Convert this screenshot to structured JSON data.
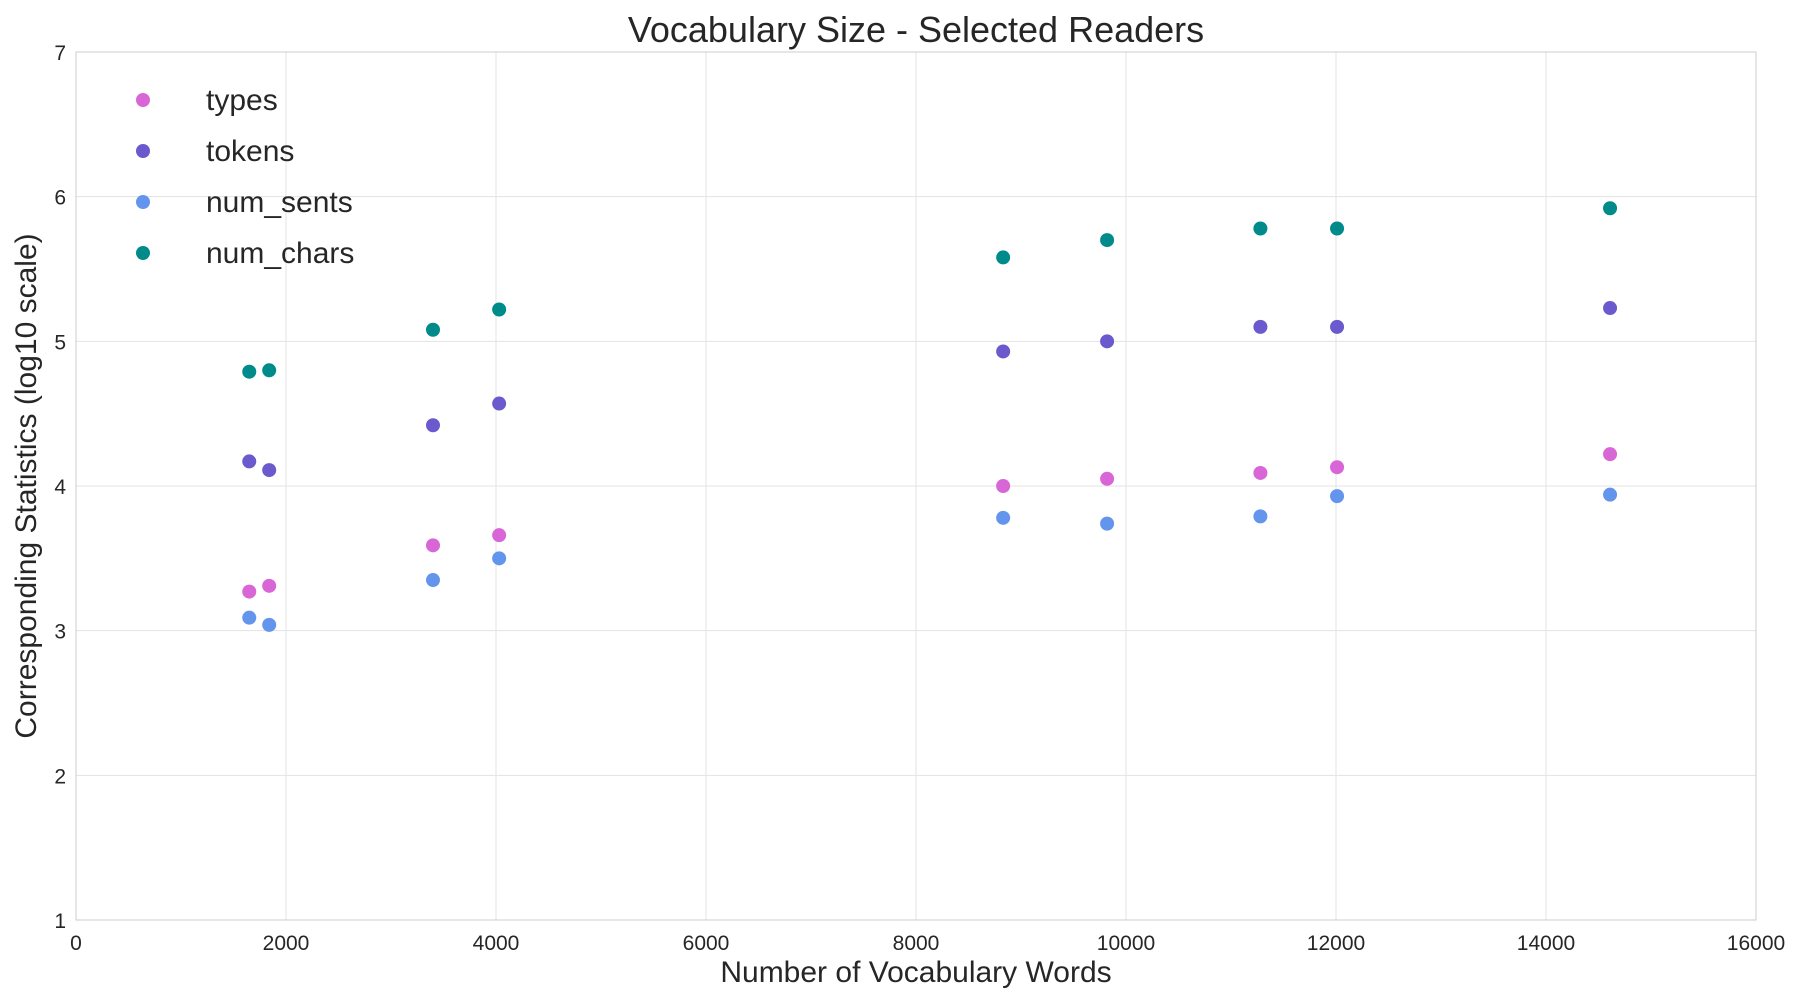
{
  "chart_data": {
    "type": "scatter",
    "title": "Vocabulary Size - Selected Readers",
    "xlabel": "Number of Vocabulary Words",
    "ylabel": "Corresponding Statistics (log10 scale)",
    "xlim": [
      0,
      16000
    ],
    "ylim": [
      1,
      7
    ],
    "xticks": [
      0,
      2000,
      4000,
      6000,
      8000,
      10000,
      12000,
      14000,
      16000
    ],
    "yticks": [
      1,
      2,
      3,
      4,
      5,
      6,
      7
    ],
    "grid": true,
    "legend_position": "top-left",
    "x": [
      1650,
      1840,
      3400,
      4030,
      8830,
      9820,
      11280,
      12010,
      14610
    ],
    "series": [
      {
        "name": "types",
        "color": "#d966d6",
        "values": [
          3.27,
          3.31,
          3.59,
          3.66,
          4.0,
          4.05,
          4.09,
          4.13,
          4.22
        ]
      },
      {
        "name": "tokens",
        "color": "#6a5acd",
        "values": [
          4.17,
          4.11,
          4.42,
          4.57,
          4.93,
          5.0,
          5.1,
          5.1,
          5.23
        ]
      },
      {
        "name": "num_sents",
        "color": "#6495ed",
        "values": [
          3.09,
          3.04,
          3.35,
          3.5,
          3.78,
          3.74,
          3.79,
          3.93,
          3.94
        ]
      },
      {
        "name": "num_chars",
        "color": "#008b8b",
        "values": [
          4.79,
          4.8,
          5.08,
          5.22,
          5.58,
          5.7,
          5.78,
          5.78,
          5.92
        ]
      }
    ]
  }
}
